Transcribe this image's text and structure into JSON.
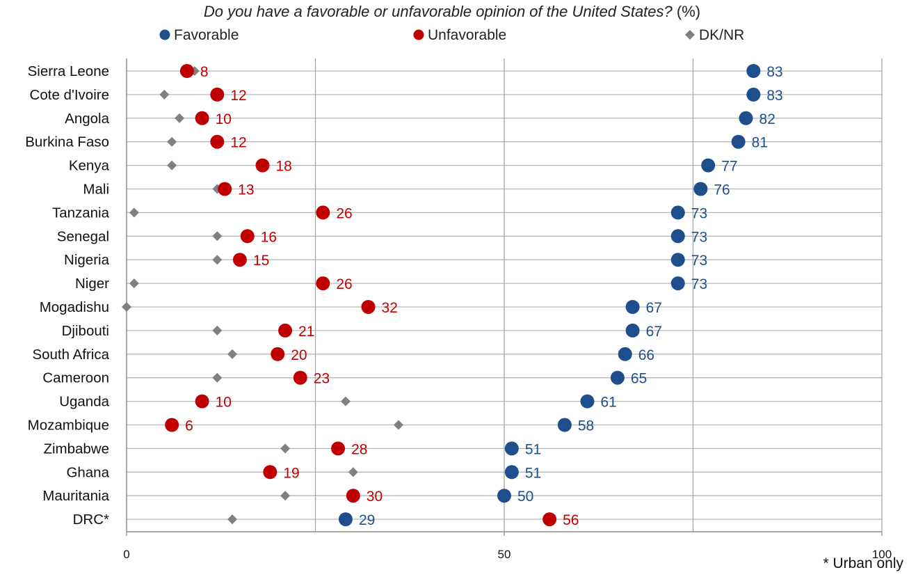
{
  "chart_data": {
    "type": "scatter",
    "title": "Do you have a favorable or unfavorable opinion of the United States?",
    "title_unit": "(%)",
    "footnote": "* Urban only",
    "xlim": [
      0,
      100
    ],
    "xticks": [
      "0",
      "50",
      "100"
    ],
    "grid": true,
    "legend_position": "top",
    "categories": [
      "Sierra Leone",
      "Cote d'Ivoire",
      "Angola",
      "Burkina Faso",
      "Kenya",
      "Mali",
      "Tanzania",
      "Senegal",
      "Nigeria",
      "Niger",
      "Mogadishu",
      "Djibouti",
      "South Africa",
      "Cameroon",
      "Uganda",
      "Mozambique",
      "Zimbabwe",
      "Ghana",
      "Mauritania",
      "DRC*"
    ],
    "series": [
      {
        "name": "Favorable",
        "marker": "circle",
        "color": "#1f4e8c",
        "labeled": true,
        "values": [
          83,
          83,
          82,
          81,
          77,
          76,
          73,
          73,
          73,
          73,
          67,
          67,
          66,
          65,
          61,
          58,
          51,
          51,
          50,
          29
        ]
      },
      {
        "name": "Unfavorable",
        "marker": "circle",
        "color": "#c00000",
        "labeled": true,
        "values": [
          8,
          12,
          10,
          12,
          18,
          13,
          26,
          16,
          15,
          26,
          32,
          21,
          20,
          23,
          10,
          6,
          28,
          19,
          30,
          56
        ]
      },
      {
        "name": "DK/NR",
        "marker": "diamond",
        "color": "#808080",
        "labeled": false,
        "values": [
          9,
          5,
          7,
          6,
          6,
          12,
          1,
          12,
          12,
          1,
          0,
          12,
          14,
          12,
          29,
          36,
          21,
          30,
          21,
          14
        ]
      }
    ]
  }
}
